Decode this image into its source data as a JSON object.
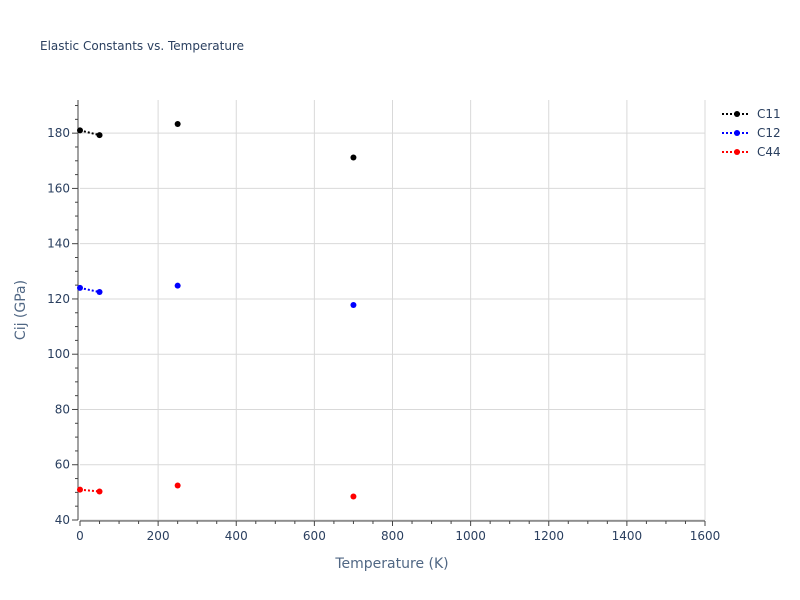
{
  "chart_data": {
    "type": "scatter",
    "title": "Elastic Constants vs. Temperature",
    "xlabel": "Temperature (K)",
    "ylabel": "Cij (GPa)",
    "xlim": [
      0,
      1600
    ],
    "ylim": [
      40,
      192
    ],
    "x_ticks": [
      0,
      200,
      400,
      600,
      800,
      1000,
      1200,
      1400,
      1600
    ],
    "y_ticks": [
      40,
      60,
      80,
      100,
      120,
      140,
      160,
      180
    ],
    "grid": true,
    "legend_position": "top-right",
    "series": [
      {
        "name": "C11",
        "color": "#000000",
        "points": [
          [
            0,
            181
          ],
          [
            50,
            179.3
          ],
          [
            250,
            183.3
          ],
          [
            700,
            171.2
          ]
        ],
        "dotted_segment": [
          [
            0,
            181
          ],
          [
            50,
            179.3
          ]
        ]
      },
      {
        "name": "C12",
        "color": "#0000ff",
        "points": [
          [
            0,
            124
          ],
          [
            50,
            122.5
          ],
          [
            250,
            124.8
          ],
          [
            700,
            117.8
          ]
        ],
        "dotted_segment": [
          [
            0,
            124
          ],
          [
            50,
            122.5
          ]
        ]
      },
      {
        "name": "C44",
        "color": "#ff0000",
        "points": [
          [
            0,
            51
          ],
          [
            50,
            50.3
          ],
          [
            250,
            52.5
          ],
          [
            700,
            48.5
          ]
        ],
        "dotted_segment": [
          [
            0,
            51
          ],
          [
            50,
            50.3
          ]
        ]
      }
    ]
  }
}
